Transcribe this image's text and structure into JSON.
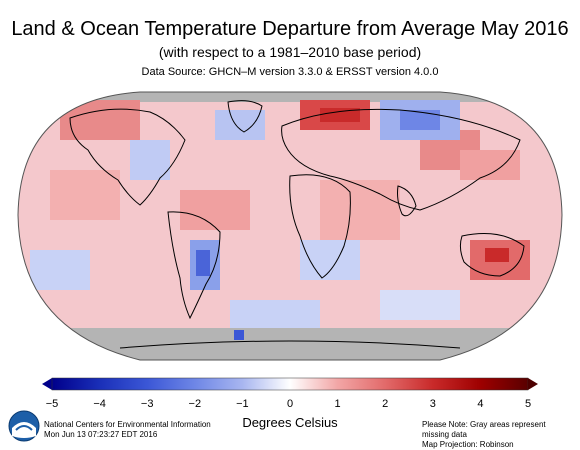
{
  "header": {
    "title": "Land & Ocean Temperature Departure from Average May 2016",
    "subtitle": "(with respect to a 1981–2010 base period)",
    "source": "Data Source: GHCN–M version 3.3.0 & ERSST version 4.0.0"
  },
  "map": {
    "projection_note": "Map Projection: Robinson",
    "missing_note": "Please Note: Gray areas represent missing data",
    "colors": {
      "missing": "#b4b4b4",
      "ocean_base": "#f4c8cc",
      "land_outline": "#000000"
    }
  },
  "colorbar": {
    "units_label": "Degrees Celsius",
    "tick_labels": [
      "−5",
      "−4",
      "−3",
      "−2",
      "−1",
      "0",
      "1",
      "2",
      "3",
      "4",
      "5"
    ],
    "range": [
      -5,
      5
    ],
    "color_stops": [
      "#00008b",
      "#1a2fb8",
      "#3b57d6",
      "#6e86e6",
      "#a8b6f0",
      "#d8def8",
      "#fbd6d6",
      "#f2a6a6",
      "#e26a6a",
      "#c92a2a",
      "#9e0000",
      "#4d0000"
    ]
  },
  "footer": {
    "org": "National Centers for Environmental Information",
    "timestamp": "Mon Jun 13 07:23:27 EDT 2016",
    "logo_icon": "noaa-logo-icon"
  }
}
